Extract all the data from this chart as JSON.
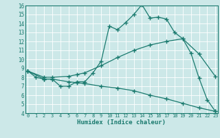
{
  "line1_x": [
    0,
    1,
    2,
    3,
    4,
    5,
    6,
    7,
    8,
    9,
    10,
    11,
    12,
    13,
    14,
    15,
    16,
    17,
    18,
    19,
    20,
    21,
    22,
    23
  ],
  "line1_y": [
    8.7,
    8.0,
    7.8,
    7.8,
    7.0,
    7.0,
    7.5,
    7.5,
    8.5,
    9.8,
    13.7,
    13.3,
    14.1,
    15.0,
    16.1,
    14.6,
    14.7,
    14.5,
    13.0,
    12.3,
    10.7,
    7.9,
    5.5,
    4.2
  ],
  "line2_x": [
    0,
    2,
    3,
    5,
    6,
    7,
    9,
    11,
    13,
    15,
    17,
    19,
    21,
    23
  ],
  "line2_y": [
    8.7,
    8.0,
    8.0,
    8.1,
    8.3,
    8.5,
    9.3,
    10.2,
    11.0,
    11.6,
    12.0,
    12.3,
    10.6,
    8.1
  ],
  "line3_x": [
    0,
    2,
    3,
    5,
    6,
    7,
    9,
    11,
    13,
    15,
    17,
    19,
    21,
    23
  ],
  "line3_y": [
    8.7,
    7.8,
    7.8,
    7.5,
    7.4,
    7.3,
    7.0,
    6.8,
    6.5,
    6.0,
    5.6,
    5.1,
    4.6,
    4.2
  ],
  "color": "#1a7a6e",
  "bg_color": "#cce8e8",
  "grid_color": "#b0d4d4",
  "xlabel": "Humidex (Indice chaleur)",
  "xlim": [
    0,
    23
  ],
  "ylim": [
    4,
    16
  ],
  "xticks": [
    0,
    1,
    2,
    3,
    4,
    5,
    6,
    7,
    8,
    9,
    10,
    11,
    12,
    13,
    14,
    15,
    16,
    17,
    18,
    19,
    20,
    21,
    22,
    23
  ],
  "yticks": [
    4,
    5,
    6,
    7,
    8,
    9,
    10,
    11,
    12,
    13,
    14,
    15,
    16
  ]
}
